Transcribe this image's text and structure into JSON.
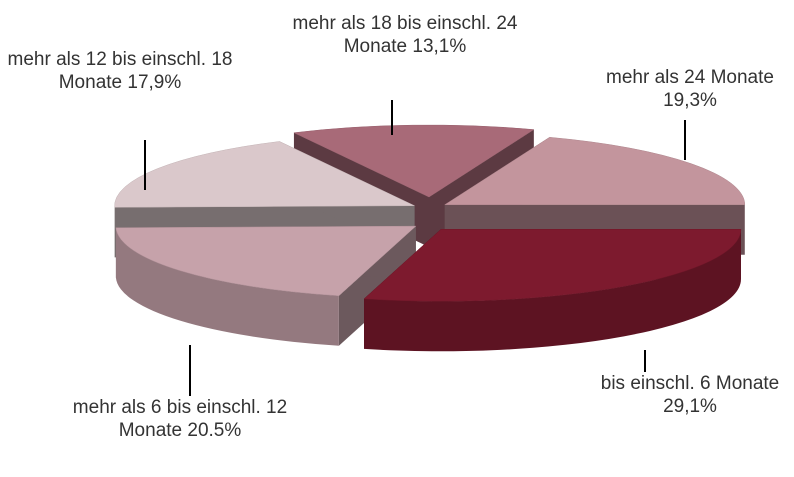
{
  "chart_data": {
    "type": "pie",
    "categories": [
      "bis einschl. 6 Monate",
      "mehr als 6 bis einschl. 12 Monate",
      "mehr als 12 bis einschl. 18 Monate",
      "mehr als 18 bis einschl. 24 Monate",
      "mehr als 24 Monate"
    ],
    "values": [
      29.1,
      20.5,
      17.9,
      13.1,
      19.3
    ],
    "value_labels": [
      "29,1%",
      "20.5%",
      "17,9%",
      "13,1%",
      "19,3%"
    ],
    "colors": [
      "#7d1a2e",
      "#c6a2aa",
      "#dac8cb",
      "#a86a78",
      "#c3959d"
    ]
  }
}
